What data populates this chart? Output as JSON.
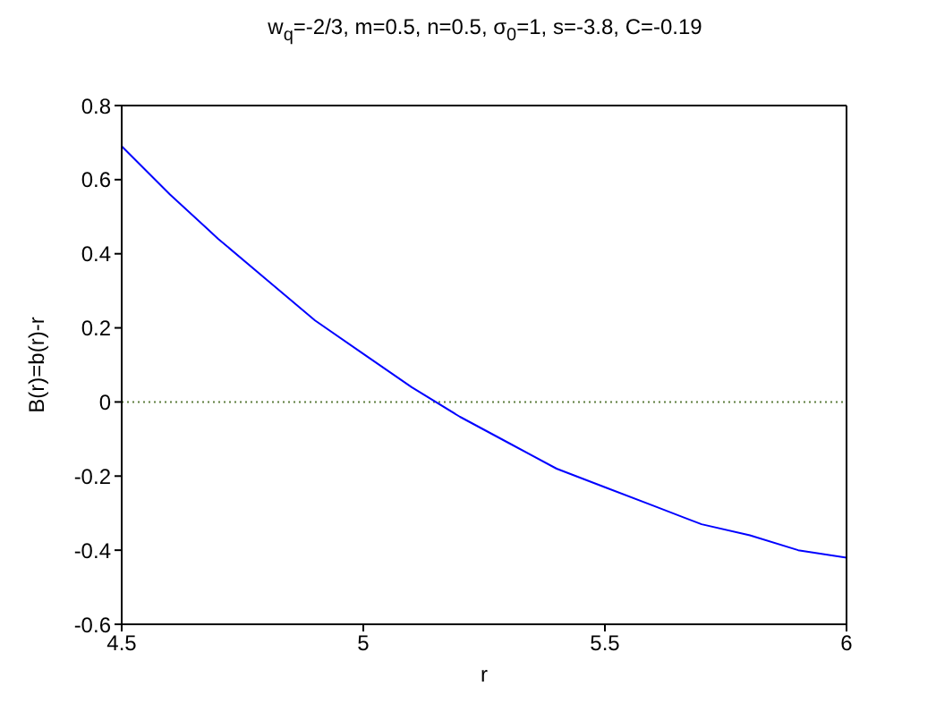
{
  "chart_data": {
    "type": "line",
    "title": "w$_{q}$=-2/3, m=0.5, n=0.5, σ$_{0}$=1, s=-3.8, C=-0.19",
    "xlabel": "r",
    "ylabel": "B(r)=b(r)-r",
    "x": [
      4.5,
      4.6,
      4.7,
      4.8,
      4.9,
      5.0,
      5.1,
      5.2,
      5.3,
      5.4,
      5.5,
      5.6,
      5.7,
      5.8,
      5.9,
      6.0
    ],
    "series": [
      {
        "color": "#0000ff",
        "values": [
          0.69,
          0.56,
          0.44,
          0.33,
          0.22,
          0.13,
          0.04,
          -0.04,
          -0.11,
          -0.18,
          -0.23,
          -0.28,
          -0.33,
          -0.36,
          -0.4,
          -0.42
        ]
      }
    ],
    "xlim": [
      4.5,
      6
    ],
    "xticks": [
      4.5,
      5,
      5.5,
      6
    ],
    "ylim": [
      -0.6,
      0.8
    ],
    "yticks": [
      -0.6,
      -0.4,
      -0.2,
      0,
      0.2,
      0.4,
      0.6,
      0.8
    ],
    "ref_lines": [
      {
        "axis": "y",
        "value": 0,
        "color": "#5f7f3f",
        "line_style": "dotted"
      }
    ],
    "grid": false,
    "legend": false,
    "marker": "none",
    "line_style": "solid"
  }
}
